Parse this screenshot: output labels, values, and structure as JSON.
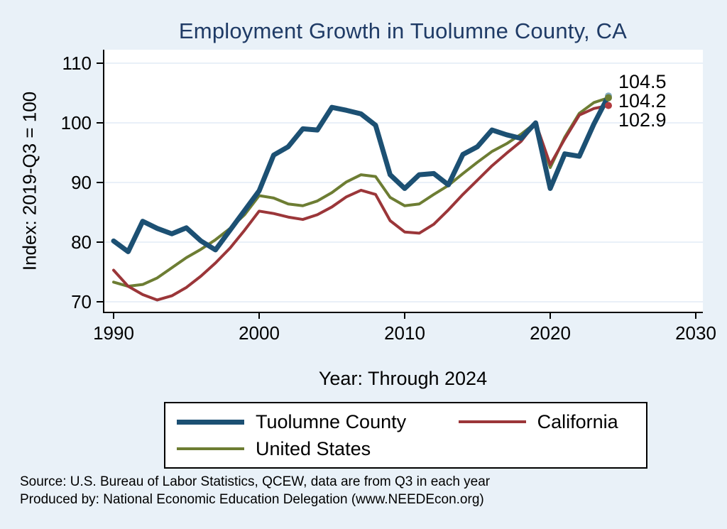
{
  "colors": {
    "title": "#1f3b66",
    "background": "#e9f1f8"
  },
  "footer": {
    "source": "Source: U.S. Bureau of Labor Statistics, QCEW, data are from Q3 in each year",
    "produced_by": "Produced by: National Economic Education Delegation (www.NEEDEcon.org)"
  },
  "chart_data": {
    "type": "line",
    "title": "Employment Growth in Tuolumne County, CA",
    "xlabel": "Year: Through 2024",
    "ylabel": "Index: 2019-Q3 = 100",
    "legend_position": "bottom",
    "grid": "horizontal",
    "plot_background": "#ffffff",
    "grid_color": "#d3e2f0",
    "xticks": [
      1990,
      2000,
      2010,
      2020,
      2030
    ],
    "yticks": [
      70,
      80,
      90,
      100,
      110
    ],
    "xlim": [
      1989.3,
      2030.5
    ],
    "ylim": [
      68,
      112
    ],
    "x": [
      1990,
      1991,
      1992,
      1993,
      1994,
      1995,
      1996,
      1997,
      1998,
      1999,
      2000,
      2001,
      2002,
      2003,
      2004,
      2005,
      2006,
      2007,
      2008,
      2009,
      2010,
      2011,
      2012,
      2013,
      2014,
      2015,
      2016,
      2017,
      2018,
      2019,
      2020,
      2021,
      2022,
      2023,
      2024
    ],
    "series": [
      {
        "name": "Tuolumne County",
        "color": "#1c5073",
        "marker_color": "#7fa8bd",
        "line_width": 7,
        "end_label": "104.5",
        "values": [
          80.2,
          78.4,
          83.5,
          82.3,
          81.4,
          82.4,
          80.2,
          78.7,
          82.0,
          85.3,
          88.6,
          94.6,
          96.0,
          99.0,
          98.8,
          102.6,
          102.1,
          101.5,
          99.6,
          91.3,
          89.0,
          91.3,
          91.5,
          89.6,
          94.7,
          96.0,
          98.8,
          98.0,
          97.4,
          100.0,
          89.0,
          94.8,
          94.4,
          99.8,
          104.5
        ]
      },
      {
        "name": "California",
        "color": "#9b3639",
        "marker_color": "#b13a3e",
        "line_width": 4,
        "end_label": "102.9",
        "values": [
          75.3,
          72.6,
          71.2,
          70.3,
          71.0,
          72.4,
          74.3,
          76.5,
          79.0,
          82.0,
          85.2,
          84.8,
          84.2,
          83.8,
          84.6,
          85.9,
          87.6,
          88.7,
          88.0,
          83.6,
          81.7,
          81.5,
          83.0,
          85.4,
          88.0,
          90.4,
          92.8,
          94.9,
          96.9,
          100.0,
          93.0,
          97.3,
          101.3,
          102.4,
          102.9
        ]
      },
      {
        "name": "United States",
        "color": "#6d7d33",
        "marker_color": "#6d7d33",
        "line_width": 4,
        "end_label": "104.2",
        "values": [
          73.3,
          72.6,
          72.9,
          74.0,
          75.7,
          77.4,
          78.8,
          80.4,
          82.3,
          84.6,
          87.8,
          87.4,
          86.4,
          86.1,
          86.9,
          88.3,
          90.1,
          91.3,
          91.0,
          87.5,
          86.1,
          86.4,
          88.0,
          89.5,
          91.5,
          93.4,
          95.2,
          96.5,
          98.1,
          100.0,
          92.5,
          97.6,
          101.6,
          103.4,
          104.2
        ]
      }
    ]
  }
}
